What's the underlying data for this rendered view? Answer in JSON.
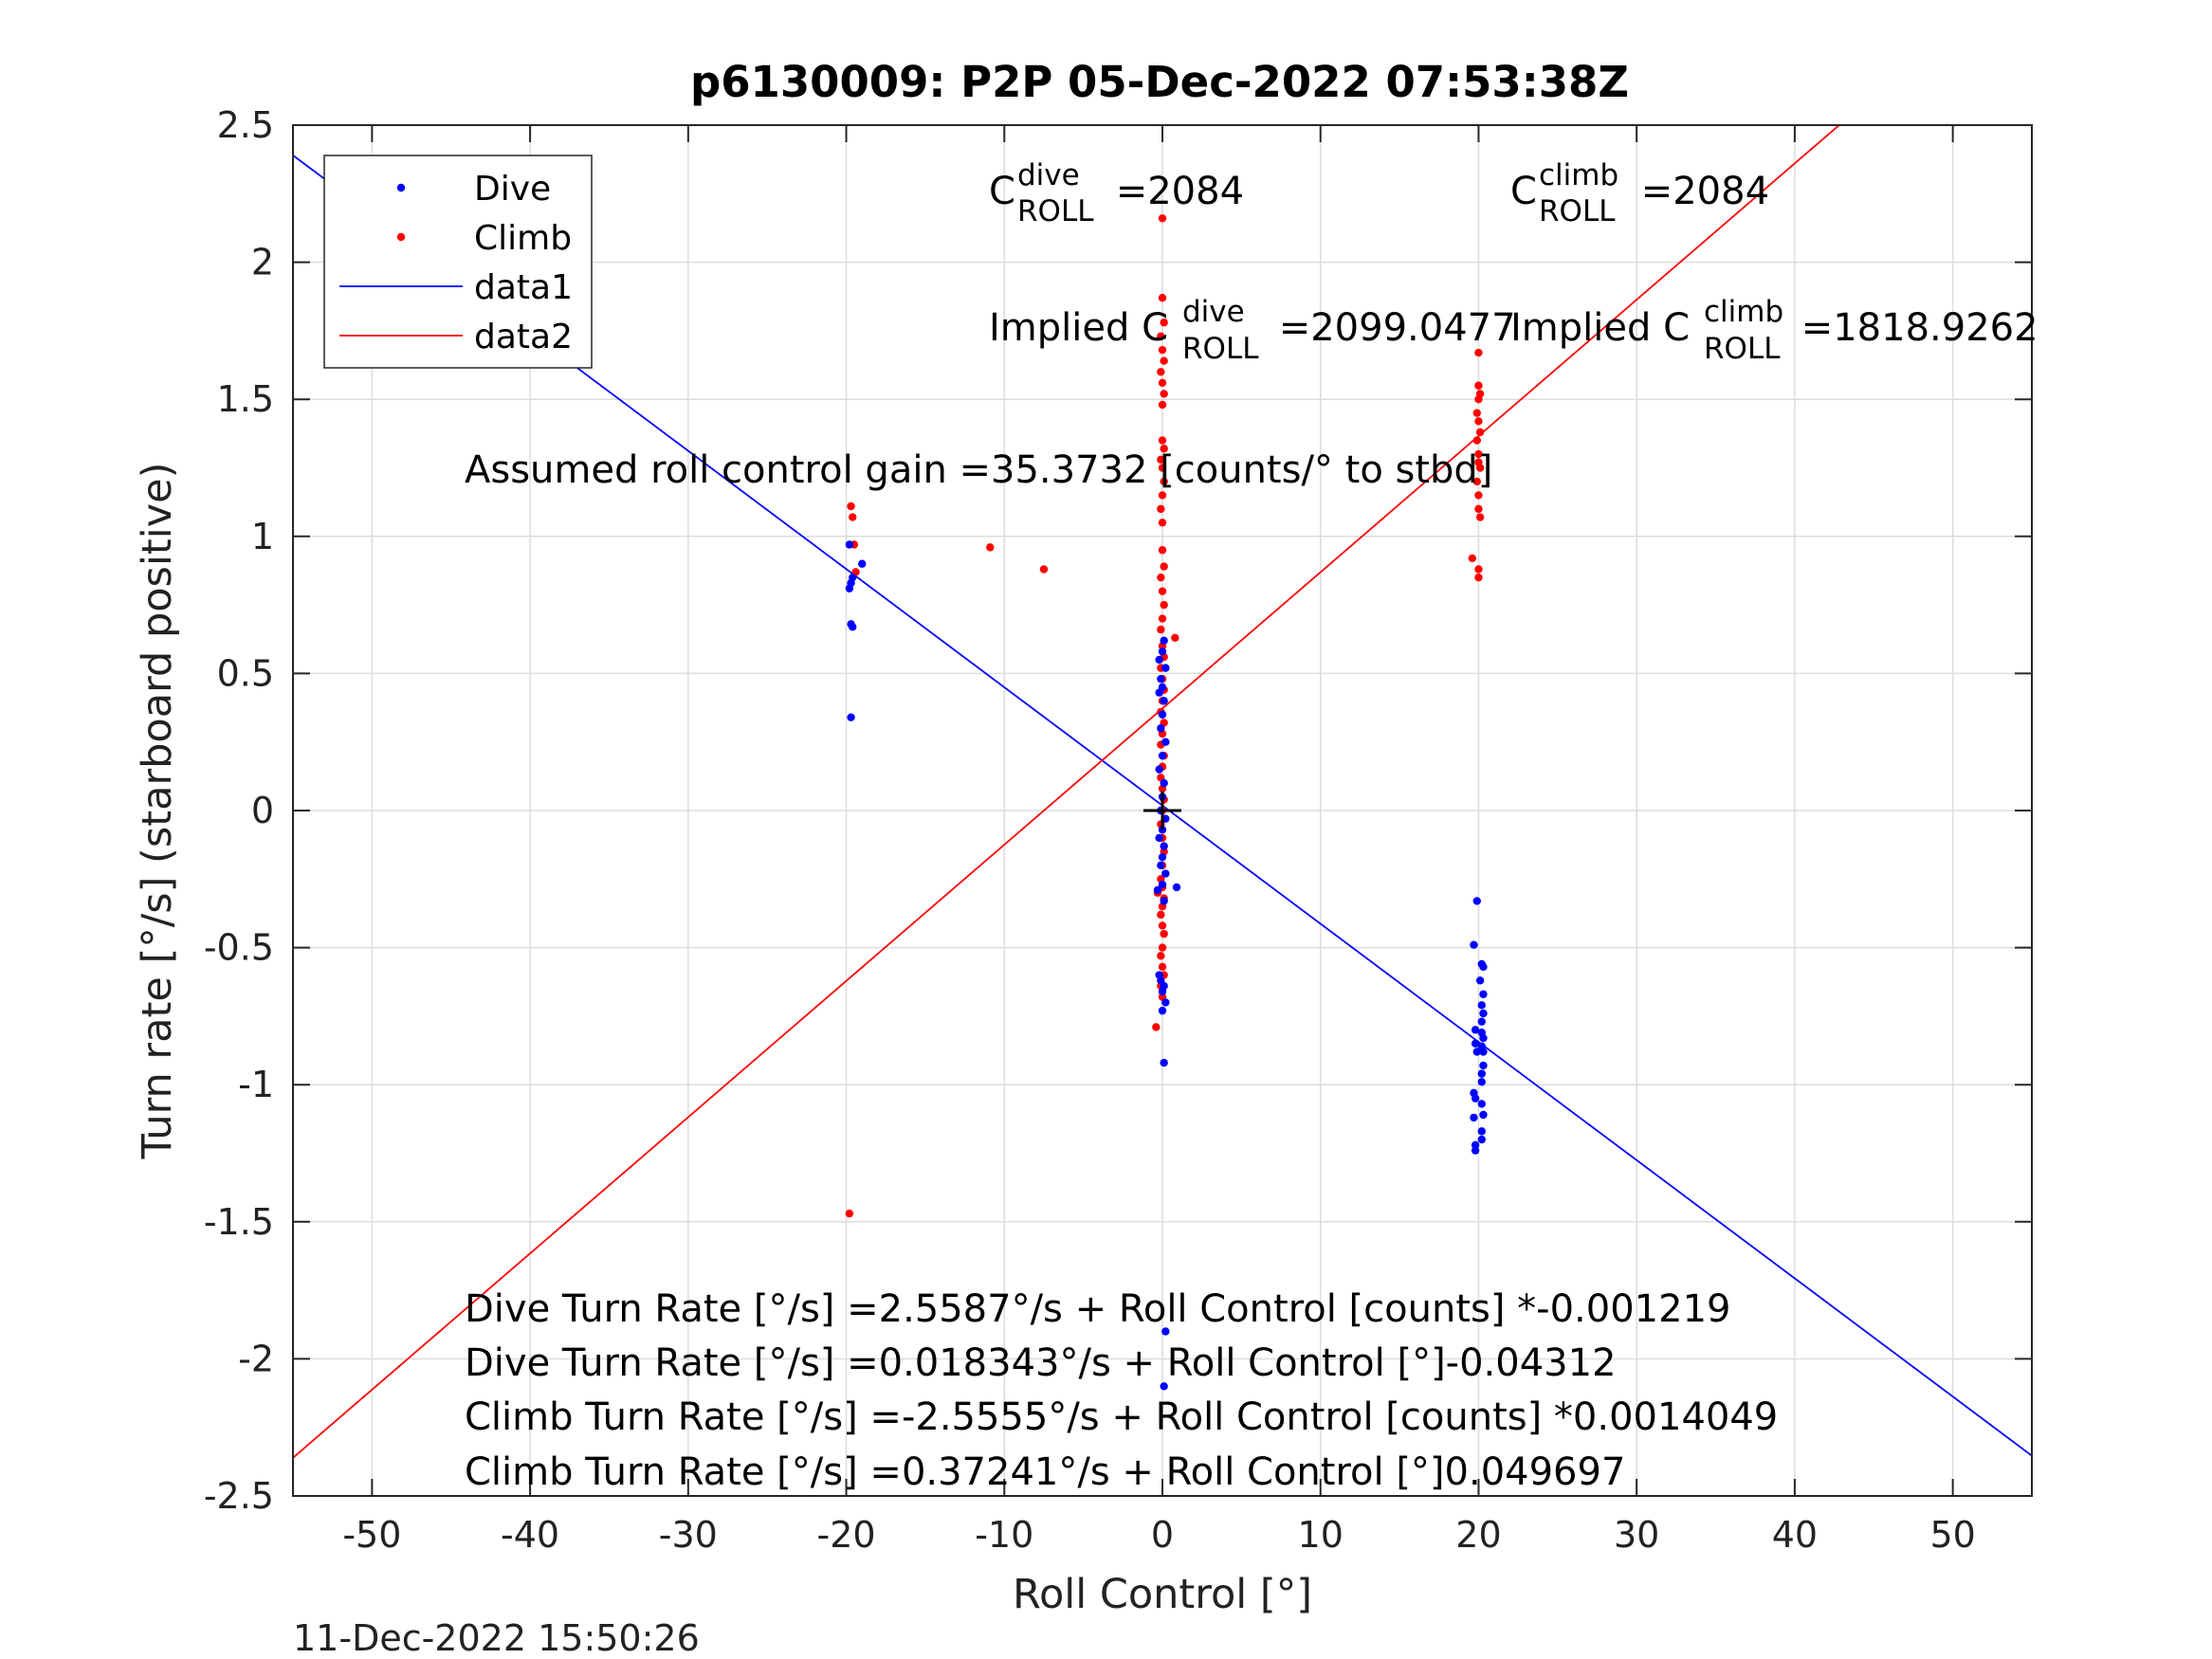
{
  "chart_data": {
    "type": "scatter",
    "title": "p6130009: P2P 05-Dec-2022 07:53:38Z",
    "xlabel": "Roll Control [°]",
    "ylabel": "Turn rate [°/s] (starboard positive)",
    "xlim": [
      -55,
      55
    ],
    "ylim": [
      -2.5,
      2.5
    ],
    "xticks": [
      -50,
      -40,
      -30,
      -20,
      -10,
      0,
      10,
      20,
      30,
      40,
      50
    ],
    "yticks": [
      2.5,
      2,
      1.5,
      1,
      0.5,
      0,
      -0.5,
      -1,
      -1.5,
      -2,
      -2.5
    ],
    "xtick_labels": [
      "-50",
      "-40",
      "-30",
      "-20",
      "-10",
      "0",
      "10",
      "20",
      "30",
      "40",
      "50"
    ],
    "ytick_labels": [
      "2.5",
      "2",
      "1.5",
      "1",
      "0.5",
      "0",
      "-0.5",
      "-1",
      "-1.5",
      "-2",
      "-2.5"
    ],
    "grid": true,
    "legend_position": "top-left",
    "legend": [
      {
        "label": "Dive",
        "color": "#0000ff",
        "marker": "dot"
      },
      {
        "label": "Climb",
        "color": "#ff0000",
        "marker": "dot"
      },
      {
        "label": "data1",
        "color": "#0000ff",
        "marker": "line"
      },
      {
        "label": "data2",
        "color": "#ff0000",
        "marker": "line"
      }
    ],
    "series": [
      {
        "name": "Dive",
        "color": "#0000ff",
        "points": [
          [
            -19.8,
            0.97
          ],
          [
            -19.7,
            0.83
          ],
          [
            -19.8,
            0.81
          ],
          [
            -19.6,
            0.85
          ],
          [
            -19.0,
            0.9
          ],
          [
            -19.7,
            0.68
          ],
          [
            -19.6,
            0.67
          ],
          [
            -19.7,
            0.34
          ],
          [
            0.1,
            0.62
          ],
          [
            0.0,
            0.58
          ],
          [
            -0.2,
            0.55
          ],
          [
            0.2,
            0.52
          ],
          [
            -0.1,
            0.48
          ],
          [
            0.0,
            0.45
          ],
          [
            -0.2,
            0.43
          ],
          [
            0.1,
            0.4
          ],
          [
            0.0,
            0.35
          ],
          [
            -0.1,
            0.3
          ],
          [
            0.2,
            0.25
          ],
          [
            0.0,
            0.2
          ],
          [
            -0.2,
            0.15
          ],
          [
            0.1,
            0.1
          ],
          [
            0.0,
            0.05
          ],
          [
            -0.1,
            0.0
          ],
          [
            0.2,
            -0.03
          ],
          [
            0.0,
            -0.07
          ],
          [
            -0.2,
            -0.1
          ],
          [
            0.1,
            -0.13
          ],
          [
            0.0,
            -0.17
          ],
          [
            -0.1,
            -0.2
          ],
          [
            0.2,
            -0.23
          ],
          [
            0.0,
            -0.27
          ],
          [
            -0.3,
            -0.29
          ],
          [
            0.9,
            -0.28
          ],
          [
            0.1,
            -0.33
          ],
          [
            -0.2,
            -0.6
          ],
          [
            -0.1,
            -0.62
          ],
          [
            0.1,
            -0.64
          ],
          [
            0.0,
            -0.66
          ],
          [
            0.2,
            -0.7
          ],
          [
            0.0,
            -0.73
          ],
          [
            0.1,
            -0.92
          ],
          [
            0.2,
            -1.9
          ],
          [
            0.1,
            -2.1
          ],
          [
            19.9,
            -0.33
          ],
          [
            19.7,
            -0.49
          ],
          [
            20.2,
            -0.56
          ],
          [
            20.3,
            -0.57
          ],
          [
            20.1,
            -0.62
          ],
          [
            20.3,
            -0.67
          ],
          [
            20.2,
            -0.71
          ],
          [
            20.3,
            -0.74
          ],
          [
            20.2,
            -0.77
          ],
          [
            19.8,
            -0.8
          ],
          [
            20.2,
            -0.81
          ],
          [
            20.3,
            -0.83
          ],
          [
            19.8,
            -0.85
          ],
          [
            20.2,
            -0.86
          ],
          [
            20.3,
            -0.88
          ],
          [
            19.9,
            -0.88
          ],
          [
            20.3,
            -0.93
          ],
          [
            20.2,
            -0.96
          ],
          [
            20.2,
            -0.99
          ],
          [
            19.7,
            -1.03
          ],
          [
            19.8,
            -1.05
          ],
          [
            20.2,
            -1.07
          ],
          [
            19.7,
            -1.12
          ],
          [
            20.3,
            -1.11
          ],
          [
            20.2,
            -1.17
          ],
          [
            19.8,
            -1.22
          ],
          [
            19.8,
            -1.24
          ],
          [
            20.2,
            -1.2
          ]
        ]
      },
      {
        "name": "Climb",
        "color": "#ff0000",
        "points": [
          [
            0.0,
            2.16
          ],
          [
            0.0,
            1.87
          ],
          [
            0.1,
            1.78
          ],
          [
            -0.1,
            1.73
          ],
          [
            0.0,
            1.68
          ],
          [
            0.1,
            1.64
          ],
          [
            -0.1,
            1.6
          ],
          [
            0.0,
            1.56
          ],
          [
            0.1,
            1.52
          ],
          [
            0.0,
            1.48
          ],
          [
            0.0,
            1.35
          ],
          [
            0.1,
            1.32
          ],
          [
            -0.1,
            1.28
          ],
          [
            0.0,
            1.25
          ],
          [
            0.1,
            1.2
          ],
          [
            0.0,
            1.15
          ],
          [
            -0.1,
            1.1
          ],
          [
            0.0,
            1.05
          ],
          [
            0.0,
            0.95
          ],
          [
            0.1,
            0.89
          ],
          [
            -0.1,
            0.85
          ],
          [
            0.0,
            0.8
          ],
          [
            0.1,
            0.75
          ],
          [
            0.0,
            0.7
          ],
          [
            -0.1,
            0.66
          ],
          [
            0.8,
            0.63
          ],
          [
            0.0,
            0.6
          ],
          [
            0.1,
            0.56
          ],
          [
            -0.1,
            0.52
          ],
          [
            0.0,
            0.48
          ],
          [
            0.1,
            0.44
          ],
          [
            0.0,
            0.4
          ],
          [
            -0.1,
            0.36
          ],
          [
            0.1,
            0.32
          ],
          [
            0.0,
            0.28
          ],
          [
            -0.1,
            0.24
          ],
          [
            0.1,
            0.2
          ],
          [
            0.0,
            0.16
          ],
          [
            -0.1,
            0.12
          ],
          [
            0.0,
            0.08
          ],
          [
            0.1,
            0.04
          ],
          [
            0.0,
            0.0
          ],
          [
            -0.1,
            -0.05
          ],
          [
            0.0,
            -0.1
          ],
          [
            0.1,
            -0.15
          ],
          [
            0.0,
            -0.2
          ],
          [
            -0.1,
            -0.25
          ],
          [
            0.0,
            -0.28
          ],
          [
            -0.3,
            -0.3
          ],
          [
            0.1,
            -0.32
          ],
          [
            0.0,
            -0.35
          ],
          [
            -0.1,
            -0.38
          ],
          [
            0.0,
            -0.42
          ],
          [
            0.1,
            -0.45
          ],
          [
            0.0,
            -0.5
          ],
          [
            -0.1,
            -0.53
          ],
          [
            0.0,
            -0.57
          ],
          [
            0.1,
            -0.6
          ],
          [
            -0.1,
            -0.64
          ],
          [
            0.0,
            -0.68
          ],
          [
            -0.4,
            -0.79
          ],
          [
            -19.7,
            1.11
          ],
          [
            -19.6,
            1.07
          ],
          [
            -19.5,
            0.97
          ],
          [
            -19.4,
            0.87
          ],
          [
            -10.9,
            0.96
          ],
          [
            -7.5,
            0.88
          ],
          [
            -19.8,
            -1.47
          ],
          [
            20.0,
            1.67
          ],
          [
            20.0,
            1.55
          ],
          [
            20.1,
            1.52
          ],
          [
            20.0,
            1.5
          ],
          [
            19.9,
            1.45
          ],
          [
            20.0,
            1.42
          ],
          [
            20.1,
            1.38
          ],
          [
            19.9,
            1.35
          ],
          [
            20.0,
            1.3
          ],
          [
            20.0,
            1.27
          ],
          [
            20.1,
            1.25
          ],
          [
            19.9,
            1.2
          ],
          [
            20.0,
            1.15
          ],
          [
            20.0,
            1.1
          ],
          [
            20.1,
            1.07
          ],
          [
            19.6,
            0.92
          ],
          [
            20.0,
            0.88
          ],
          [
            20.0,
            0.85
          ]
        ]
      }
    ],
    "fit_lines": [
      {
        "name": "data1",
        "color": "#0000ff",
        "slope": -0.04312,
        "intercept": 0.018343
      },
      {
        "name": "data2",
        "color": "#ff0000",
        "slope": 0.049697,
        "intercept": 0.37241
      }
    ],
    "center_marker": {
      "x": 0,
      "y": 0,
      "symbol": "+"
    },
    "annotations": {
      "c_dive": {
        "base": "C",
        "sup": "dive",
        "sub": "ROLL",
        "value": " =2084"
      },
      "c_climb": {
        "base": "C",
        "sup": "climb",
        "sub": "ROLL",
        "value": " =2084"
      },
      "implied_dive": {
        "base": "Implied C",
        "sup": "dive",
        "sub": "ROLL",
        "value": " =2099.0477"
      },
      "implied_climb": {
        "base": "Implied C",
        "sup": "climb",
        "sub": "ROLL",
        "value": " =1818.9262"
      },
      "gain": "Assumed roll control gain =35.3732 [counts/° to stbd]",
      "eq1": "Dive Turn Rate [°/s] =2.5587°/s + Roll Control [counts] *-0.001219",
      "eq2": "Dive Turn Rate [°/s] =0.018343°/s + Roll Control [°]-0.04312",
      "eq3": "Climb Turn Rate [°/s] =-2.5555°/s + Roll Control [counts] *0.0014049",
      "eq4": "Climb Turn Rate [°/s] =0.37241°/s + Roll Control [°]0.049697"
    }
  },
  "timestamp": "11-Dec-2022 15:50:26"
}
